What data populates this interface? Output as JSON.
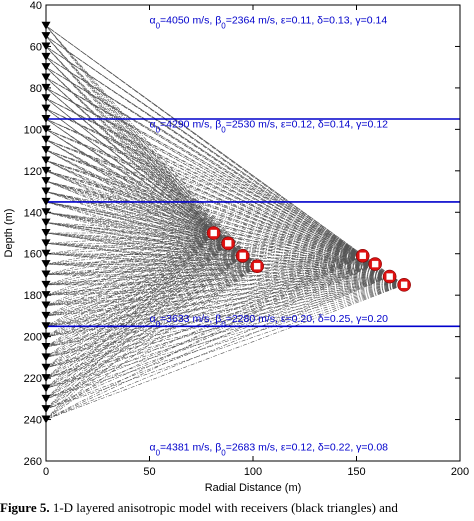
{
  "chart_data": {
    "type": "scatter",
    "title": "",
    "xlabel": "Radial Distance (m)",
    "ylabel": "Depth (m)",
    "xlim": [
      0,
      200
    ],
    "ylim": [
      40,
      260
    ],
    "y_inverted": true,
    "xticks": [
      "0",
      "50",
      "100",
      "150",
      "200"
    ],
    "yticks": [
      "40",
      "60",
      "80",
      "100",
      "120",
      "140",
      "160",
      "180",
      "200",
      "220",
      "240",
      "260"
    ],
    "grid": false,
    "receivers": {
      "marker": "black-triangle",
      "x": 0,
      "depths": [
        50,
        55,
        60,
        65,
        70,
        75,
        80,
        85,
        90,
        95,
        100,
        105,
        110,
        115,
        120,
        125,
        130,
        135,
        140,
        145,
        150,
        155,
        160,
        165,
        170,
        175,
        180,
        185,
        190,
        195,
        200,
        205,
        210,
        215,
        220,
        225,
        230,
        235,
        240
      ]
    },
    "sources": {
      "marker": "red-square",
      "points": [
        {
          "x": 81,
          "y": 150
        },
        {
          "x": 88,
          "y": 155
        },
        {
          "x": 95,
          "y": 161
        },
        {
          "x": 102,
          "y": 166
        },
        {
          "x": 153,
          "y": 161
        },
        {
          "x": 159,
          "y": 165
        },
        {
          "x": 166,
          "y": 171
        },
        {
          "x": 173,
          "y": 175
        }
      ]
    },
    "interfaces": [
      95,
      135,
      195
    ],
    "layers": [
      {
        "label_y": 49,
        "alpha": "4050",
        "beta": "2364",
        "epsilon": "0.11",
        "delta": "0.13",
        "gamma": "0.14"
      },
      {
        "label_y": 99,
        "alpha": "4290",
        "beta": "2530",
        "epsilon": "0.12",
        "delta": "0.14",
        "gamma": "0.12"
      },
      {
        "label_y": 193,
        "alpha": "3633",
        "beta": "2280",
        "epsilon": "0.20",
        "delta": "0.25",
        "gamma": "0.20"
      },
      {
        "label_y": 255,
        "alpha": "4381",
        "beta": "2683",
        "epsilon": "0.12",
        "delta": "0.22",
        "gamma": "0.08"
      }
    ],
    "colors": {
      "interface": "#0000cc",
      "labels": "#0000cc",
      "rays": "#555555",
      "source_fill": "#dd1111",
      "receiver": "#000000"
    }
  },
  "caption": {
    "label": "Figure 5.",
    "text": "1-D layered anisotropic model with receivers (black triangles) and"
  }
}
